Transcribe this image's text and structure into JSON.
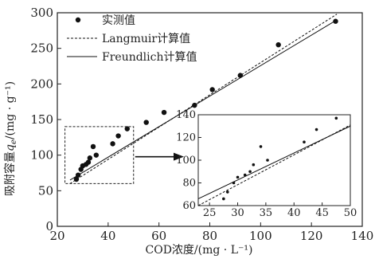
{
  "chart_data": [
    {
      "type": "scatter",
      "xlabel": "COD浓度/(mg · L⁻¹)",
      "ylabel_prefix": "吸附容量",
      "ylabel_var": "q",
      "ylabel_sub": "e",
      "ylabel_unit": "/(mg · g⁻¹)",
      "xlim": [
        20,
        140
      ],
      "ylim": [
        0,
        300
      ],
      "xticks": [
        "20",
        "40",
        "60",
        "80",
        "100",
        "120",
        "140"
      ],
      "yticks": [
        "0",
        "50",
        "100",
        "150",
        "200",
        "250",
        "300"
      ],
      "legend": {
        "position": "top-left",
        "entries": [
          "实测值",
          "Langmuir计算值",
          "Freundlich计算值"
        ]
      },
      "series": [
        {
          "name": "实测值",
          "style": "points",
          "x": [
            27.5,
            28.2,
            29.3,
            30.0,
            31.3,
            32.2,
            32.8,
            34.1,
            35.3,
            41.8,
            44.0,
            47.5,
            55.0,
            62.0,
            74.0,
            81.0,
            92.0,
            107.0,
            129.5
          ],
          "y": [
            66,
            72,
            80,
            85,
            87,
            90,
            96,
            112,
            100,
            116,
            127,
            137,
            146,
            160,
            170,
            192,
            212,
            255,
            288
          ]
        },
        {
          "name": "Langmuir计算值",
          "style": "dashed",
          "x": [
            25,
            130
          ],
          "y": [
            60,
            298
          ]
        },
        {
          "name": "Freundlich计算值",
          "style": "solid",
          "x": [
            25,
            130
          ],
          "y": [
            65,
            290
          ]
        }
      ]
    },
    {
      "type": "scatter",
      "role": "inset",
      "xlim": [
        23,
        50
      ],
      "ylim": [
        60,
        140
      ],
      "xticks": [
        "25",
        "30",
        "35",
        "40",
        "45",
        "50"
      ],
      "yticks": [
        "60",
        "80",
        "100",
        "120",
        "140"
      ],
      "series": [
        {
          "name": "实测值",
          "style": "points",
          "x": [
            27.5,
            28.2,
            29.3,
            30.0,
            31.3,
            32.2,
            32.8,
            34.1,
            35.3,
            41.8,
            44.0,
            47.5
          ],
          "y": [
            66,
            72,
            80,
            85,
            87,
            90,
            96,
            112,
            100,
            116,
            127,
            137
          ]
        },
        {
          "name": "Langmuir计算值",
          "style": "dashed",
          "x": [
            23,
            50
          ],
          "y": [
            60,
            131
          ]
        },
        {
          "name": "Freundlich计算值",
          "style": "solid",
          "x": [
            23,
            50
          ],
          "y": [
            66,
            130
          ]
        }
      ]
    }
  ]
}
